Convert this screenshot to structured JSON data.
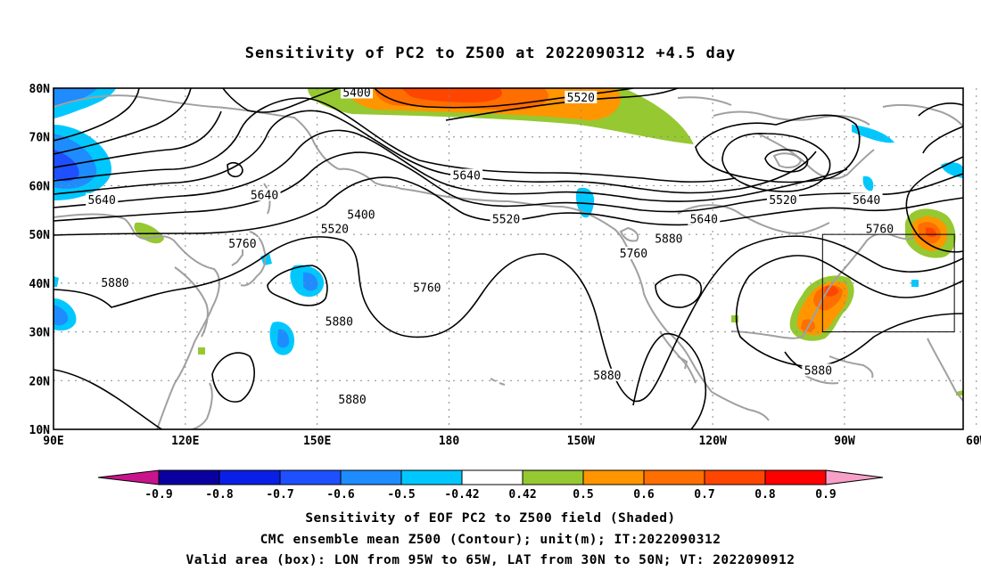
{
  "title": "Sensitivity of PC2 to Z500 at 2022090312 +4.5 day",
  "map": {
    "lat_labels": [
      "80N",
      "70N",
      "60N",
      "50N",
      "40N",
      "30N",
      "20N",
      "10N"
    ],
    "lon_labels": [
      "90E",
      "120E",
      "150E",
      "180",
      "150W",
      "120W",
      "90W",
      "60W"
    ],
    "lat_range": [
      10,
      80
    ],
    "lon_range": [
      90,
      297
    ],
    "contour_labels": [
      {
        "text": "5400",
        "lon": 160,
        "lat": 54
      },
      {
        "text": "5400",
        "lon": 159,
        "lat": 79
      },
      {
        "text": "5520",
        "lon": 154,
        "lat": 51
      },
      {
        "text": "5520",
        "lon": 210,
        "lat": 78
      },
      {
        "text": "5520",
        "lon": 193,
        "lat": 53
      },
      {
        "text": "5520",
        "lon": 256,
        "lat": 57
      },
      {
        "text": "5640",
        "lon": 101,
        "lat": 57
      },
      {
        "text": "5640",
        "lon": 138,
        "lat": 58
      },
      {
        "text": "5640",
        "lon": 184,
        "lat": 62
      },
      {
        "text": "5640",
        "lon": 238,
        "lat": 53
      },
      {
        "text": "5640",
        "lon": 275,
        "lat": 57
      },
      {
        "text": "5760",
        "lon": 133,
        "lat": 48
      },
      {
        "text": "5760",
        "lon": 222,
        "lat": 46
      },
      {
        "text": "5760",
        "lon": 278,
        "lat": 51
      },
      {
        "text": "5760",
        "lon": 175,
        "lat": 39
      },
      {
        "text": "5880",
        "lon": 104,
        "lat": 40
      },
      {
        "text": "5880",
        "lon": 155,
        "lat": 32
      },
      {
        "text": "5880",
        "lon": 230,
        "lat": 49
      },
      {
        "text": "5880",
        "lon": 158,
        "lat": 16
      },
      {
        "text": "5880",
        "lon": 216,
        "lat": 21
      },
      {
        "text": "5880",
        "lon": 264,
        "lat": 22
      }
    ],
    "valid_box": {
      "lon_min": 265,
      "lon_max": 295,
      "lat_min": 30,
      "lat_max": 50
    }
  },
  "colorbar": {
    "labels": [
      "-0.9",
      "-0.8",
      "-0.7",
      "-0.6",
      "-0.5",
      "-0.42",
      "0.42",
      "0.5",
      "0.6",
      "0.7",
      "0.8",
      "0.9"
    ],
    "colors": [
      "#0a00a0",
      "#0a1fe6",
      "#1e50ff",
      "#1e8cff",
      "#00c8ff",
      "#ffffff",
      "#96c832",
      "#ff9600",
      "#ff6e00",
      "#ff4600",
      "#ff0000"
    ],
    "below_color": "#c8148c",
    "above_color": "#f8a0c8"
  },
  "footer": {
    "line1": "Sensitivity of EOF PC2 to Z500 field (Shaded)",
    "line2": "CMC ensemble mean Z500 (Contour); unit(m); IT:2022090312",
    "line3": "Valid area (box): LON from 95W to 65W, LAT from 30N to 50N; VT: 2022090912"
  }
}
